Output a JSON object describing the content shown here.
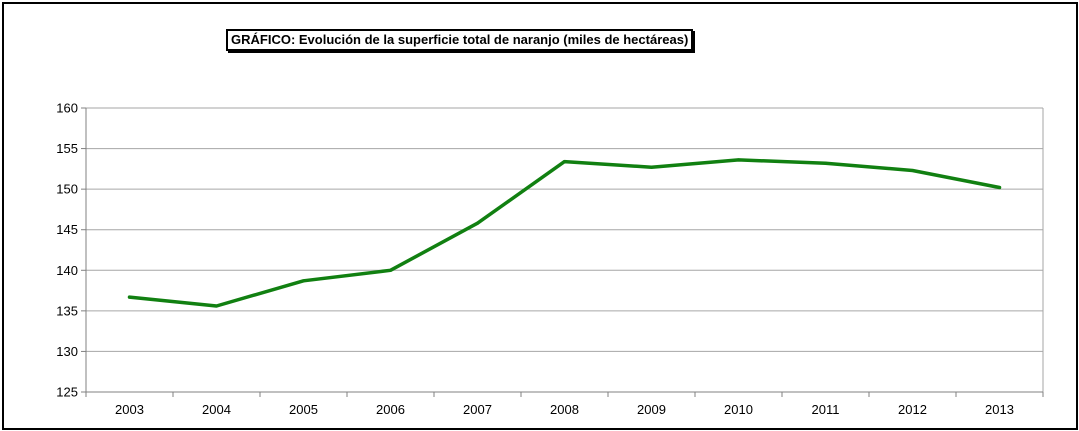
{
  "chart_data": {
    "type": "line",
    "title": "GRÁFICO: Evolución de la superficie total de naranjo (miles de hectáreas)",
    "xlabel": "",
    "ylabel": "",
    "categories": [
      "2003",
      "2004",
      "2005",
      "2006",
      "2007",
      "2008",
      "2009",
      "2010",
      "2011",
      "2012",
      "2013"
    ],
    "series": [
      {
        "values": [
          136.7,
          135.6,
          138.7,
          140.0,
          145.8,
          153.4,
          152.7,
          153.6,
          153.2,
          152.3,
          150.2
        ]
      }
    ],
    "ylim": [
      125,
      160
    ],
    "yticks": [
      125,
      130,
      135,
      140,
      145,
      150,
      155,
      160
    ],
    "grid": true,
    "legend": "none",
    "line_color": "#118011"
  }
}
